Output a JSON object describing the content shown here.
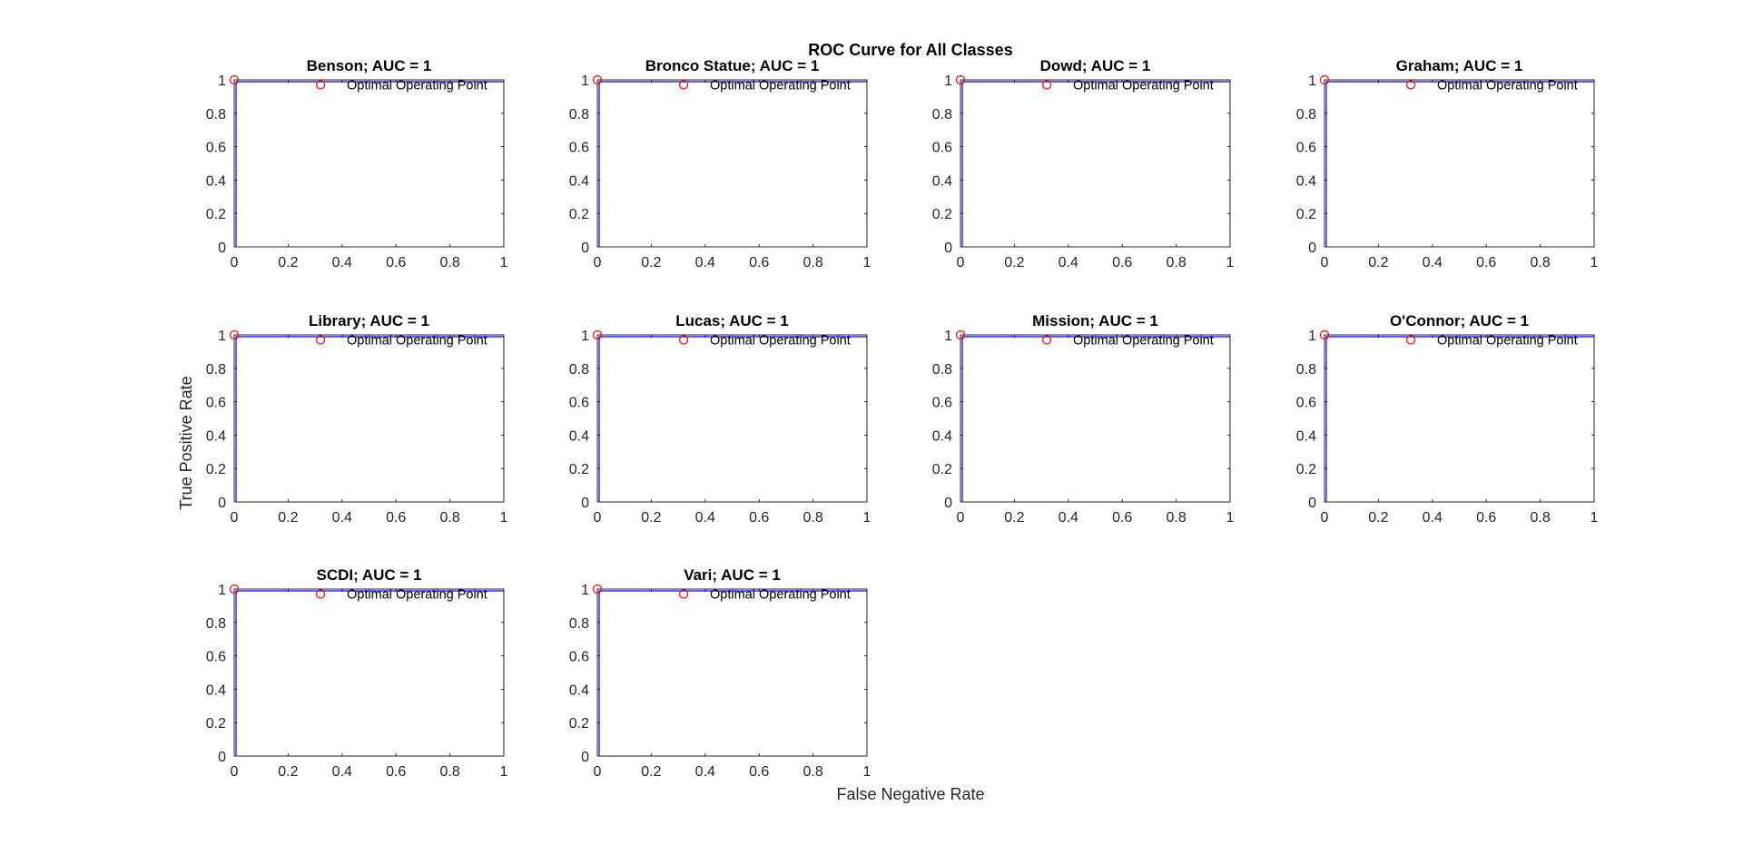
{
  "figure_title": "ROC Curve for All Classes",
  "xlabel": "False Negative Rate",
  "ylabel": "True Positive Rate",
  "annotation_label": "Optimal Operating Point",
  "colors": {
    "curve": "#0000ff",
    "marker": "#ff0000",
    "axes": "#262626"
  },
  "chart_data": [
    {
      "type": "line",
      "title": "Benson; AUC = 1",
      "x": [
        0,
        0,
        1
      ],
      "y": [
        0,
        1,
        1
      ],
      "optimal_point": [
        0,
        1
      ],
      "annotation_marker": [
        0.32,
        0.97
      ],
      "xlim": [
        0,
        1
      ],
      "ylim": [
        0,
        1
      ],
      "xticks": [
        "0",
        "0.2",
        "0.4",
        "0.6",
        "0.8",
        "1"
      ],
      "yticks": [
        "0",
        "0.2",
        "0.4",
        "0.6",
        "0.8",
        "1"
      ],
      "grid": false
    },
    {
      "type": "line",
      "title": "Bronco Statue; AUC = 1",
      "x": [
        0,
        0,
        1
      ],
      "y": [
        0,
        1,
        1
      ],
      "optimal_point": [
        0,
        1
      ],
      "annotation_marker": [
        0.32,
        0.97
      ],
      "xlim": [
        0,
        1
      ],
      "ylim": [
        0,
        1
      ],
      "xticks": [
        "0",
        "0.2",
        "0.4",
        "0.6",
        "0.8",
        "1"
      ],
      "yticks": [
        "0",
        "0.2",
        "0.4",
        "0.6",
        "0.8",
        "1"
      ],
      "grid": false
    },
    {
      "type": "line",
      "title": "Dowd; AUC = 1",
      "x": [
        0,
        0,
        1
      ],
      "y": [
        0,
        1,
        1
      ],
      "optimal_point": [
        0,
        1
      ],
      "annotation_marker": [
        0.32,
        0.97
      ],
      "xlim": [
        0,
        1
      ],
      "ylim": [
        0,
        1
      ],
      "xticks": [
        "0",
        "0.2",
        "0.4",
        "0.6",
        "0.8",
        "1"
      ],
      "yticks": [
        "0",
        "0.2",
        "0.4",
        "0.6",
        "0.8",
        "1"
      ],
      "grid": false
    },
    {
      "type": "line",
      "title": "Graham; AUC = 1",
      "x": [
        0,
        0,
        1
      ],
      "y": [
        0,
        1,
        1
      ],
      "optimal_point": [
        0,
        1
      ],
      "annotation_marker": [
        0.32,
        0.97
      ],
      "xlim": [
        0,
        1
      ],
      "ylim": [
        0,
        1
      ],
      "xticks": [
        "0",
        "0.2",
        "0.4",
        "0.6",
        "0.8",
        "1"
      ],
      "yticks": [
        "0",
        "0.2",
        "0.4",
        "0.6",
        "0.8",
        "1"
      ],
      "grid": false
    },
    {
      "type": "line",
      "title": "Library; AUC = 1",
      "x": [
        0,
        0,
        1
      ],
      "y": [
        0,
        1,
        1
      ],
      "optimal_point": [
        0,
        1
      ],
      "annotation_marker": [
        0.32,
        0.97
      ],
      "xlim": [
        0,
        1
      ],
      "ylim": [
        0,
        1
      ],
      "xticks": [
        "0",
        "0.2",
        "0.4",
        "0.6",
        "0.8",
        "1"
      ],
      "yticks": [
        "0",
        "0.2",
        "0.4",
        "0.6",
        "0.8",
        "1"
      ],
      "grid": false
    },
    {
      "type": "line",
      "title": "Lucas; AUC = 1",
      "x": [
        0,
        0,
        1
      ],
      "y": [
        0,
        1,
        1
      ],
      "optimal_point": [
        0,
        1
      ],
      "annotation_marker": [
        0.32,
        0.97
      ],
      "xlim": [
        0,
        1
      ],
      "ylim": [
        0,
        1
      ],
      "xticks": [
        "0",
        "0.2",
        "0.4",
        "0.6",
        "0.8",
        "1"
      ],
      "yticks": [
        "0",
        "0.2",
        "0.4",
        "0.6",
        "0.8",
        "1"
      ],
      "grid": false
    },
    {
      "type": "line",
      "title": "Mission; AUC = 1",
      "x": [
        0,
        0,
        1
      ],
      "y": [
        0,
        1,
        1
      ],
      "optimal_point": [
        0,
        1
      ],
      "annotation_marker": [
        0.32,
        0.97
      ],
      "xlim": [
        0,
        1
      ],
      "ylim": [
        0,
        1
      ],
      "xticks": [
        "0",
        "0.2",
        "0.4",
        "0.6",
        "0.8",
        "1"
      ],
      "yticks": [
        "0",
        "0.2",
        "0.4",
        "0.6",
        "0.8",
        "1"
      ],
      "grid": false
    },
    {
      "type": "line",
      "title": "O'Connor; AUC = 1",
      "x": [
        0,
        0,
        1
      ],
      "y": [
        0,
        1,
        1
      ],
      "optimal_point": [
        0,
        1
      ],
      "annotation_marker": [
        0.32,
        0.97
      ],
      "xlim": [
        0,
        1
      ],
      "ylim": [
        0,
        1
      ],
      "xticks": [
        "0",
        "0.2",
        "0.4",
        "0.6",
        "0.8",
        "1"
      ],
      "yticks": [
        "0",
        "0.2",
        "0.4",
        "0.6",
        "0.8",
        "1"
      ],
      "grid": false
    },
    {
      "type": "line",
      "title": "SCDI; AUC = 1",
      "x": [
        0,
        0,
        1
      ],
      "y": [
        0,
        1,
        1
      ],
      "optimal_point": [
        0,
        1
      ],
      "annotation_marker": [
        0.32,
        0.97
      ],
      "xlim": [
        0,
        1
      ],
      "ylim": [
        0,
        1
      ],
      "xticks": [
        "0",
        "0.2",
        "0.4",
        "0.6",
        "0.8",
        "1"
      ],
      "yticks": [
        "0",
        "0.2",
        "0.4",
        "0.6",
        "0.8",
        "1"
      ],
      "grid": false
    },
    {
      "type": "line",
      "title": "Vari; AUC = 1",
      "x": [
        0,
        0,
        1
      ],
      "y": [
        0,
        1,
        1
      ],
      "optimal_point": [
        0,
        1
      ],
      "annotation_marker": [
        0.32,
        0.97
      ],
      "xlim": [
        0,
        1
      ],
      "ylim": [
        0,
        1
      ],
      "xticks": [
        "0",
        "0.2",
        "0.4",
        "0.6",
        "0.8",
        "1"
      ],
      "yticks": [
        "0",
        "0.2",
        "0.4",
        "0.6",
        "0.8",
        "1"
      ],
      "grid": false
    }
  ]
}
